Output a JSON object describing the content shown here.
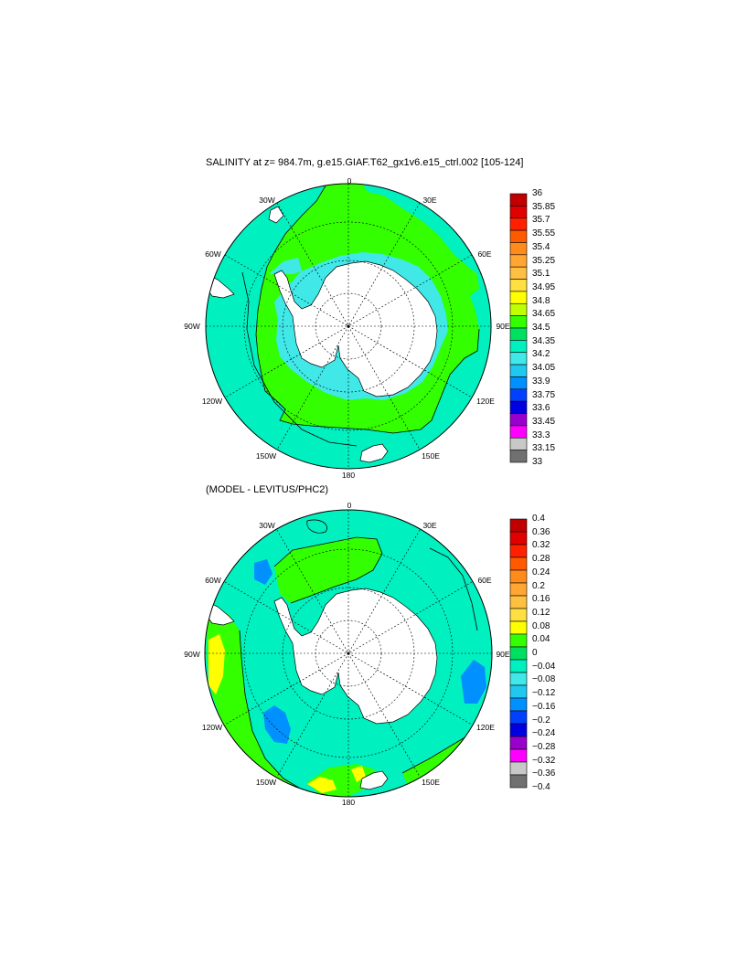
{
  "panels": [
    {
      "title": "SALINITY at z= 984.7m, g.e15.GIAF.T62_gx1v6.e15_ctrl.002 [105-124]",
      "lon_labels": [
        "0",
        "30E",
        "60E",
        "90E",
        "120E",
        "150E",
        "180",
        "150W",
        "120W",
        "90W",
        "60W",
        "30W"
      ],
      "colorbar": {
        "labels": [
          "36",
          "35.85",
          "35.7",
          "35.55",
          "35.4",
          "35.25",
          "35.1",
          "34.95",
          "34.8",
          "34.65",
          "34.5",
          "34.35",
          "34.2",
          "34.05",
          "33.9",
          "33.75",
          "33.6",
          "33.45",
          "33.3",
          "33.15",
          "33"
        ],
        "colors": [
          "#c00000",
          "#e00000",
          "#ff2000",
          "#ff5a00",
          "#ff8c1a",
          "#ffa633",
          "#ffbf40",
          "#ffe040",
          "#ffff00",
          "#c0ff00",
          "#33ff00",
          "#00e060",
          "#00f0c0",
          "#40e8e8",
          "#20c8f0",
          "#0090ff",
          "#0040ff",
          "#0000e0",
          "#9900cc",
          "#ff00ff",
          "#c8c8c8",
          "#707070"
        ]
      },
      "fields": {
        "antarctic_shelf": "#40e8e8",
        "deep_basin": "#33ff00",
        "open_ocean": "#00f0c0",
        "land": "#ffffff"
      }
    },
    {
      "title": "(MODEL - LEVITUS/PHC2)",
      "lon_labels": [
        "0",
        "30E",
        "60E",
        "90E",
        "120E",
        "150E",
        "180",
        "150W",
        "120W",
        "90W",
        "60W",
        "30W"
      ],
      "colorbar": {
        "labels": [
          "0.4",
          "0.36",
          "0.32",
          "0.28",
          "0.24",
          "0.2",
          "0.16",
          "0.12",
          "0.08",
          "0.04",
          "0",
          "−0.04",
          "−0.08",
          "−0.12",
          "−0.16",
          "−0.2",
          "−0.24",
          "−0.28",
          "−0.32",
          "−0.36",
          "−0.4"
        ],
        "colors": [
          "#c00000",
          "#e00000",
          "#ff2000",
          "#ff5a00",
          "#ff8c1a",
          "#ffa633",
          "#ffbf40",
          "#ffe040",
          "#ffff00",
          "#33ff00",
          "#00e060",
          "#00f0c0",
          "#40e8e8",
          "#20c8f0",
          "#0090ff",
          "#0040ff",
          "#0000e0",
          "#9900cc",
          "#ff00ff",
          "#c8c8c8",
          "#707070"
        ]
      },
      "fields": {
        "background": "#00f0c0",
        "positive_region": "#33ff00",
        "strong_negative": "#0090ff",
        "positive_anomaly": "#ffff00",
        "land": "#ffffff"
      }
    }
  ]
}
